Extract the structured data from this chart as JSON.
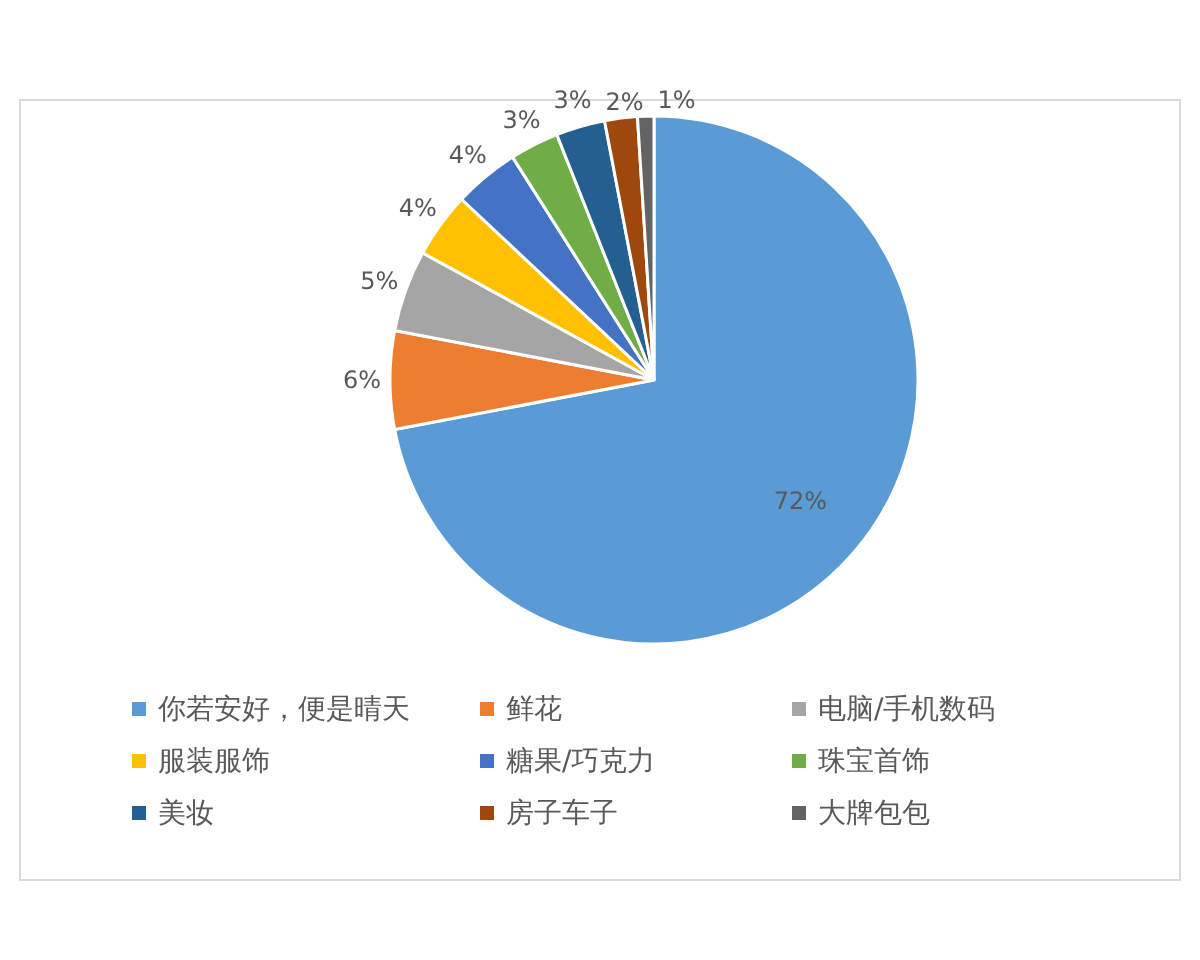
{
  "chart_data": {
    "type": "pie",
    "categories": [
      "你若安好，便是晴天",
      "鲜花",
      "电脑/手机数码",
      "服装服饰",
      "糖果/巧克力",
      "珠宝首饰",
      "美妆",
      "房子车子",
      "大牌包包"
    ],
    "values": [
      72,
      6,
      5,
      4,
      4,
      3,
      3,
      2,
      1
    ],
    "colors": [
      "#5b9bd5",
      "#ed7d31",
      "#a5a5a5",
      "#ffc000",
      "#4472c4",
      "#70ad47",
      "#255e91",
      "#9e480e",
      "#636363"
    ],
    "value_labels": [
      "72%",
      "6%",
      "5%",
      "4%",
      "4%",
      "3%",
      "3%",
      "2%",
      "1%"
    ],
    "legend": "bottom"
  }
}
